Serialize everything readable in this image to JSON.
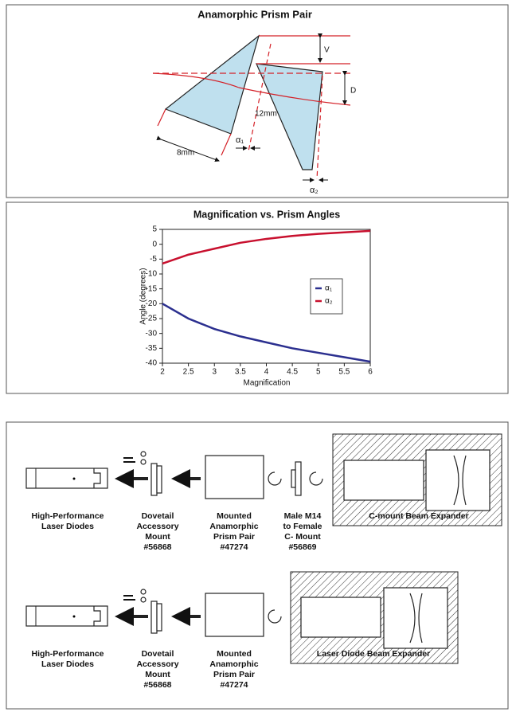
{
  "prism_diagram": {
    "title": "Anamorphic Prism Pair",
    "labels": {
      "v": "V",
      "d": "D",
      "long_side": "12mm",
      "short_side": "8mm",
      "alpha1": "α₁",
      "alpha2": "α₂"
    }
  },
  "chart_data": {
    "type": "line",
    "title": "Magnification vs. Prism Angles",
    "x_label": "Magnification",
    "y_label": "Angle (degrees)",
    "x": [
      2,
      2.5,
      3,
      3.5,
      4,
      4.5,
      5,
      5.5,
      6
    ],
    "series": [
      {
        "name": "α₁",
        "color": "#2b2f8f",
        "values": [
          -20,
          -25,
          -28.5,
          -31,
          -33,
          -35,
          -36.5,
          -38,
          -39.5
        ]
      },
      {
        "name": "α₂",
        "color": "#c8102e",
        "values": [
          -6.5,
          -3.5,
          -1.5,
          0.5,
          1.8,
          2.8,
          3.5,
          4,
          4.5
        ]
      }
    ],
    "xlim": [
      2,
      6
    ],
    "xticks": [
      2,
      2.5,
      3,
      3.5,
      4,
      4.5,
      5,
      5.5,
      6
    ],
    "ylim": [
      -40,
      5
    ],
    "yticks": [
      5,
      0,
      -5,
      -10,
      -15,
      -20,
      -25,
      -30,
      -35,
      -40
    ],
    "legend": "right"
  },
  "assembly_diagram": {
    "row1": [
      [
        "High-Performance",
        "Laser Diodes"
      ],
      [
        "Dovetail",
        "Accessory",
        "Mount",
        "#56868"
      ],
      [
        "Mounted",
        "Anamorphic",
        "Prism Pair",
        "#47274"
      ],
      [
        "Male M14",
        "to Female",
        "C- Mount",
        "#56869"
      ],
      [
        "C-mount Beam Expander"
      ]
    ],
    "row2": [
      [
        "High-Performance",
        "Laser Diodes"
      ],
      [
        "Dovetail",
        "Accessory",
        "Mount",
        "#56868"
      ],
      [
        "Mounted",
        "Anamorphic",
        "Prism Pair",
        "#47274"
      ],
      [
        "Laser Diode Beam Expander"
      ]
    ]
  }
}
